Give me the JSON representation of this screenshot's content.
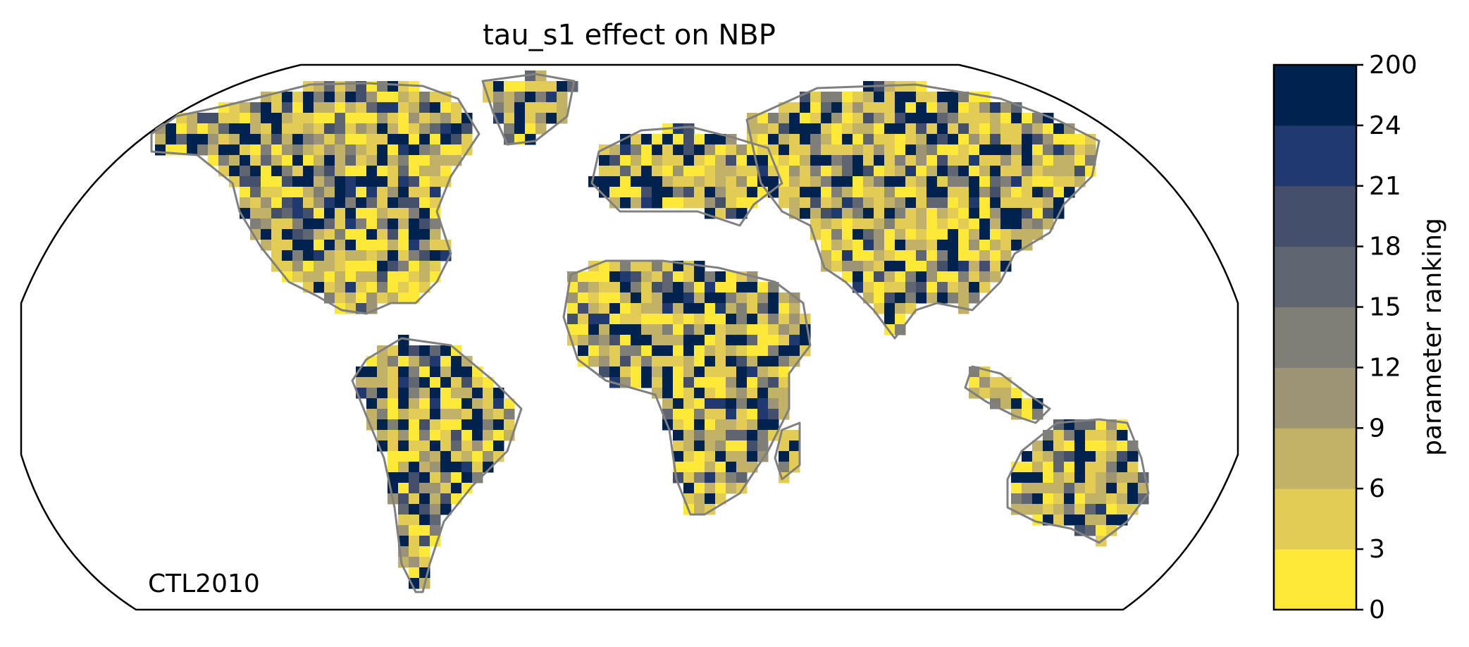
{
  "title": "tau_s1 effect on NBP",
  "run_label": "CTL2010",
  "colorbar": {
    "label": "parameter ranking",
    "ticks": [
      "0",
      "3",
      "6",
      "9",
      "12",
      "15",
      "18",
      "21",
      "24",
      "200"
    ],
    "colors": [
      "#fee838",
      "#e3cc55",
      "#c1b268",
      "#9c9474",
      "#7f7e77",
      "#5f6571",
      "#444f6c",
      "#203a70",
      "#00224e"
    ]
  },
  "map": {
    "projection": "robinson",
    "ocean_color": "#ffffff",
    "coastline_color": "#808080",
    "border_color": "#000000"
  }
}
